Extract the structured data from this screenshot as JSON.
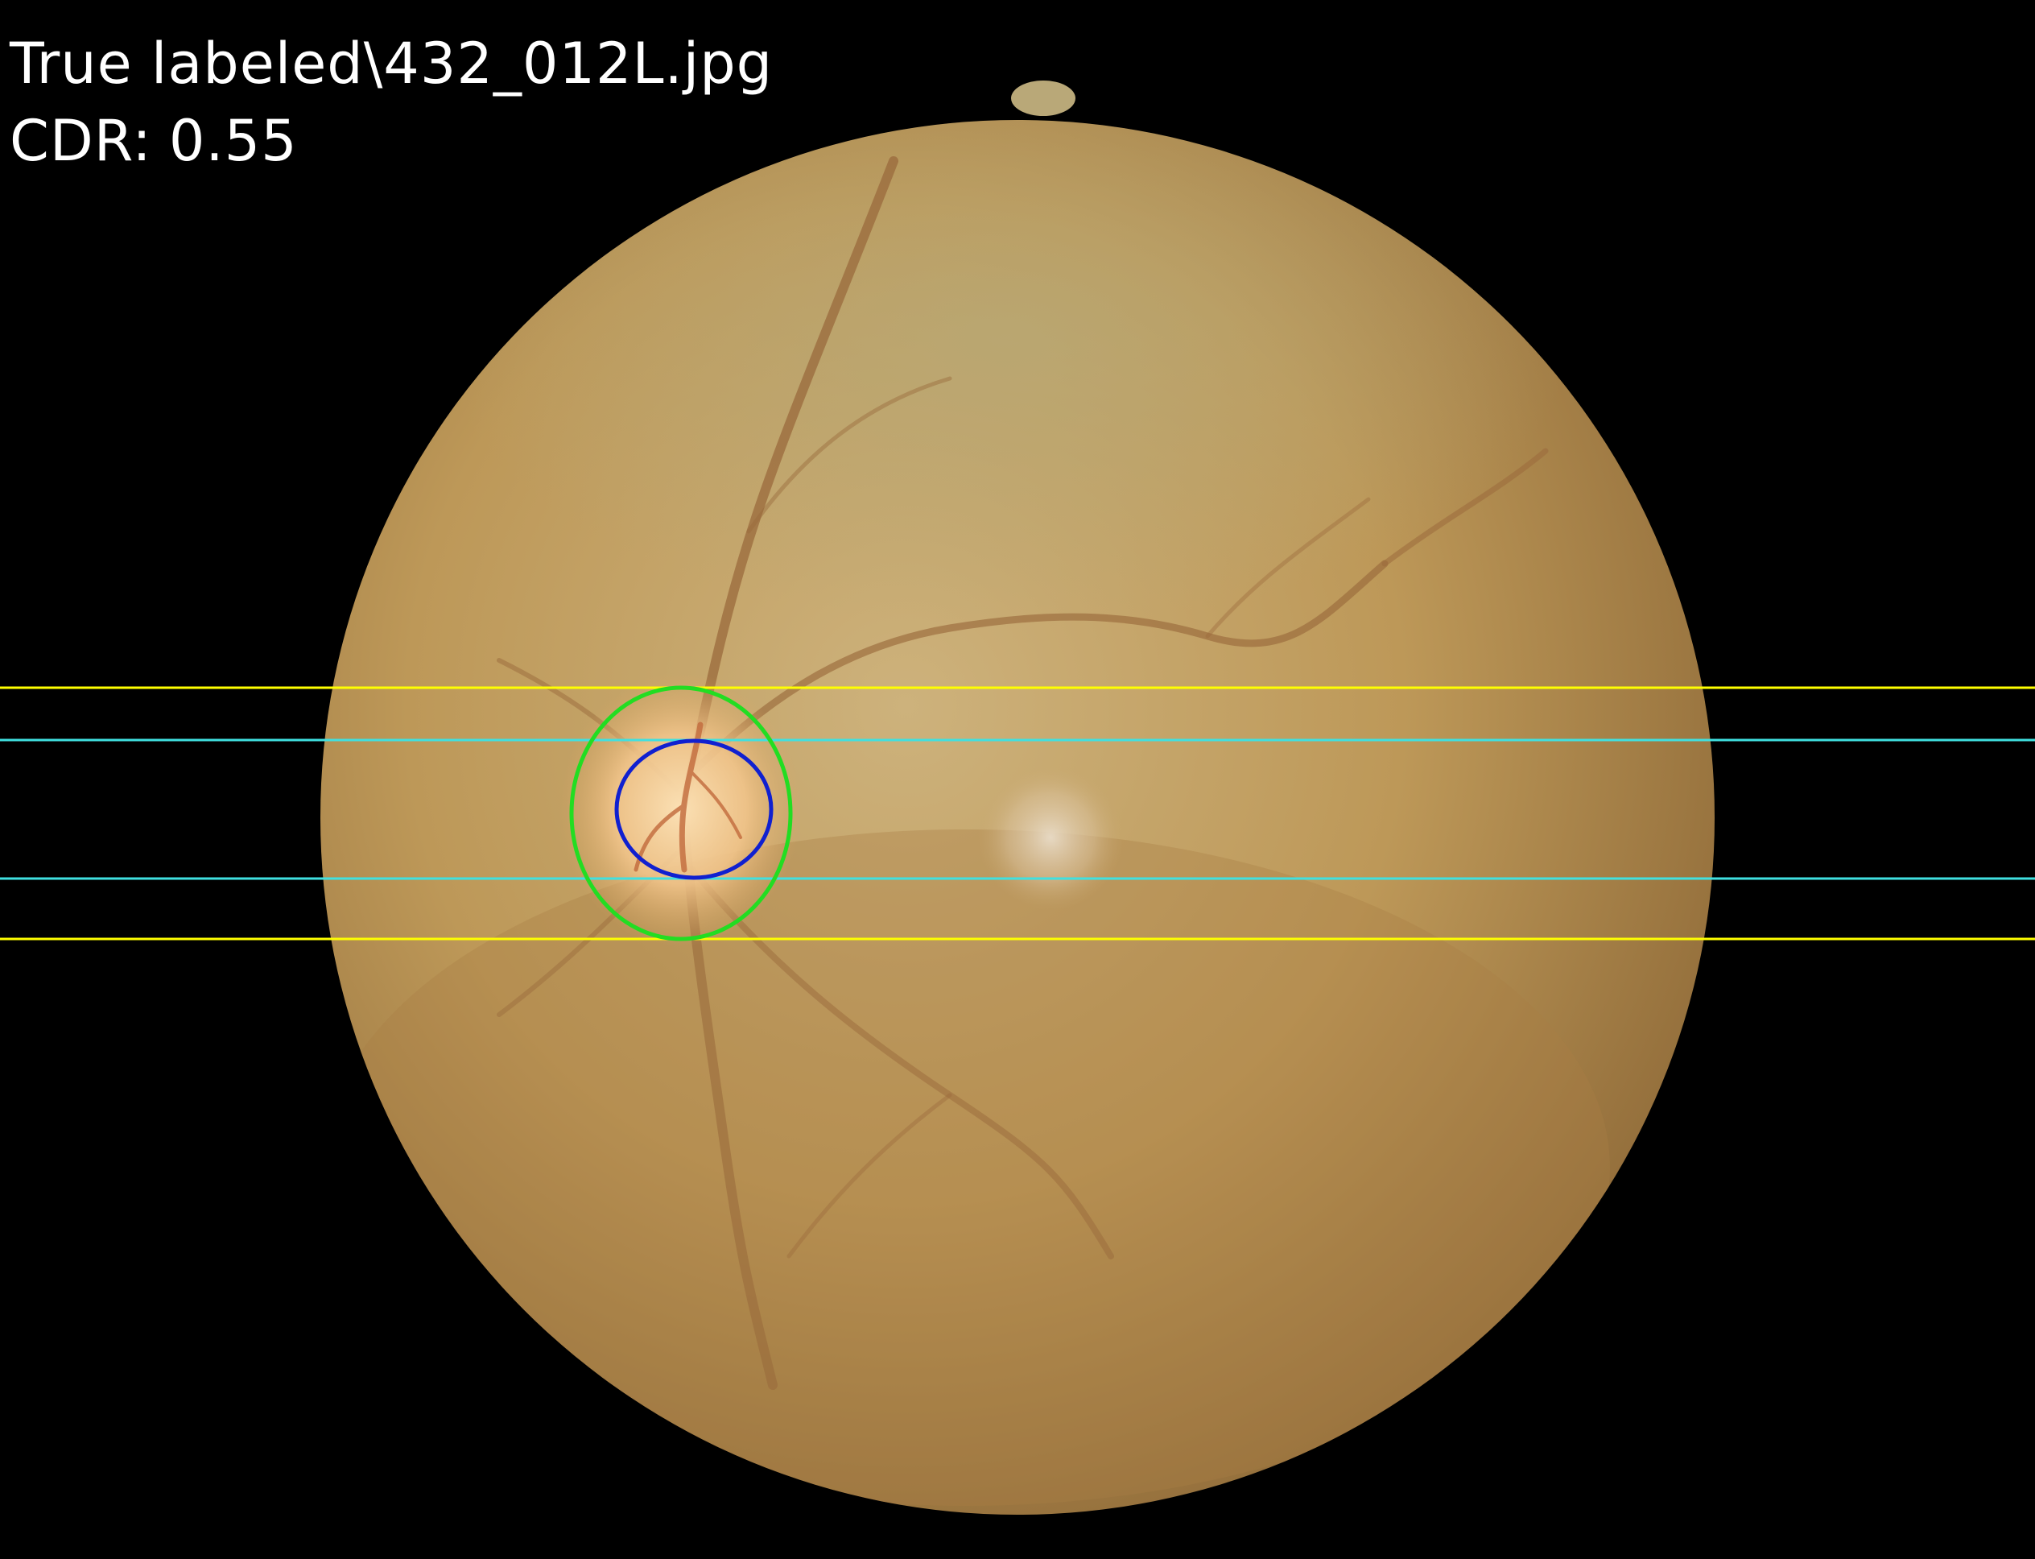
{
  "overlay": {
    "filename": "True labeled\\432_012L.jpg",
    "cdr_label": "CDR:",
    "cdr_value": "0.55"
  },
  "colors": {
    "background": "#000000",
    "fundus_light": "#c8b27a",
    "fundus_mid": "#b8944f",
    "fundus_dark": "#8a6433",
    "disc_bright": "#f4d2a0",
    "disc_boundary": "#22dd22",
    "cup_boundary": "#1020d0",
    "disc_extent_lines": "#ffff00",
    "cup_extent_lines": "#40e0e0",
    "text": "#ffffff"
  },
  "annotations": {
    "disc_boundary": "green-ellipse",
    "cup_boundary": "blue-ellipse",
    "disc_vertical_extent": "yellow-lines",
    "cup_vertical_extent": "cyan-lines"
  }
}
